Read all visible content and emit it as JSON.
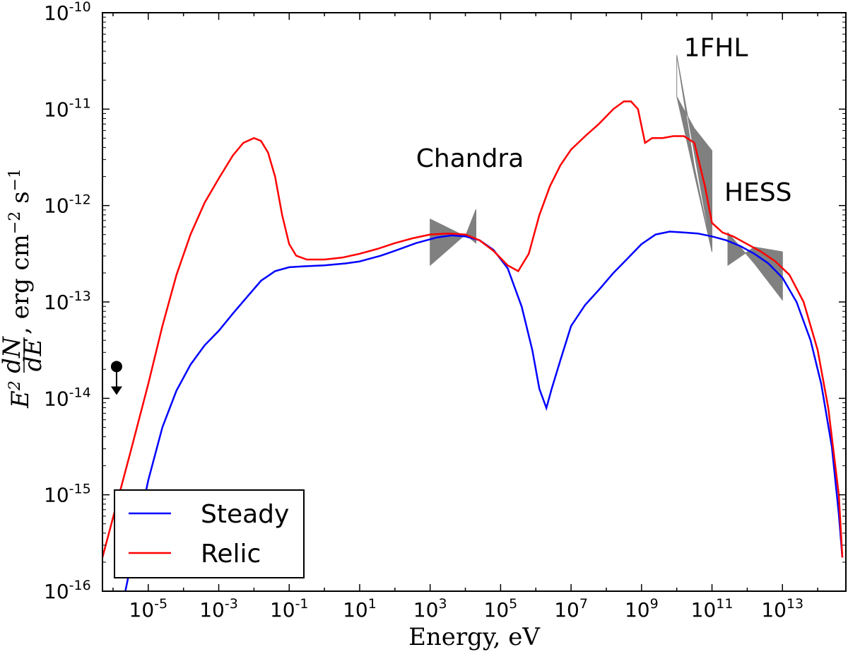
{
  "chart_data": {
    "type": "line",
    "xscale": "log",
    "yscale": "log",
    "xlim_log10": [
      -6.3,
      14.8
    ],
    "ylim_log10": [
      -16,
      -10
    ],
    "xlabel": "Energy, eV",
    "ylabel_parts": {
      "base": "E",
      "sup": "2",
      "num": "dN",
      "den": "dE",
      "unit": ", erg cm",
      "unit_sup1": "−2",
      "unit_mid": " s",
      "unit_sup2": "−1"
    },
    "x_ticks": [
      {
        "exp": -5,
        "base": "10",
        "sup": "-5"
      },
      {
        "exp": -3,
        "base": "10",
        "sup": "-3"
      },
      {
        "exp": -1,
        "base": "10",
        "sup": "-1"
      },
      {
        "exp": 1,
        "base": "10",
        "sup": "1"
      },
      {
        "exp": 3,
        "base": "10",
        "sup": "3"
      },
      {
        "exp": 5,
        "base": "10",
        "sup": "5"
      },
      {
        "exp": 7,
        "base": "10",
        "sup": "7"
      },
      {
        "exp": 9,
        "base": "10",
        "sup": "9"
      },
      {
        "exp": 11,
        "base": "10",
        "sup": "11"
      },
      {
        "exp": 13,
        "base": "10",
        "sup": "13"
      }
    ],
    "y_ticks": [
      {
        "exp": -10,
        "base": "10",
        "sup": "-10"
      },
      {
        "exp": -11,
        "base": "10",
        "sup": "-11"
      },
      {
        "exp": -12,
        "base": "10",
        "sup": "-12"
      },
      {
        "exp": -13,
        "base": "10",
        "sup": "-13"
      },
      {
        "exp": -14,
        "base": "10",
        "sup": "-14"
      },
      {
        "exp": -15,
        "base": "10",
        "sup": "-15"
      },
      {
        "exp": -16,
        "base": "10",
        "sup": "-16"
      }
    ],
    "series": [
      {
        "name": "Steady",
        "color": "#0000ff",
        "points_log10": [
          [
            -5.65,
            -16.0
          ],
          [
            -5.4,
            -15.55
          ],
          [
            -5.0,
            -14.85
          ],
          [
            -4.6,
            -14.3
          ],
          [
            -4.2,
            -13.92
          ],
          [
            -3.8,
            -13.65
          ],
          [
            -3.4,
            -13.45
          ],
          [
            -3.0,
            -13.3
          ],
          [
            -2.6,
            -13.12
          ],
          [
            -2.2,
            -12.95
          ],
          [
            -1.8,
            -12.78
          ],
          [
            -1.4,
            -12.68
          ],
          [
            -1.0,
            -12.64
          ],
          [
            -0.6,
            -12.63
          ],
          [
            0.0,
            -12.62
          ],
          [
            0.6,
            -12.6
          ],
          [
            1.0,
            -12.58
          ],
          [
            1.6,
            -12.52
          ],
          [
            2.0,
            -12.47
          ],
          [
            2.6,
            -12.39
          ],
          [
            3.2,
            -12.33
          ],
          [
            3.6,
            -12.31
          ],
          [
            4.0,
            -12.32
          ],
          [
            4.4,
            -12.36
          ],
          [
            4.8,
            -12.46
          ],
          [
            5.2,
            -12.65
          ],
          [
            5.6,
            -13.05
          ],
          [
            5.9,
            -13.5
          ],
          [
            6.1,
            -13.9
          ],
          [
            6.3,
            -14.1
          ],
          [
            6.45,
            -13.9
          ],
          [
            6.7,
            -13.6
          ],
          [
            7.0,
            -13.25
          ],
          [
            7.4,
            -13.03
          ],
          [
            7.8,
            -12.87
          ],
          [
            8.2,
            -12.7
          ],
          [
            8.6,
            -12.55
          ],
          [
            9.0,
            -12.4
          ],
          [
            9.4,
            -12.3
          ],
          [
            9.8,
            -12.27
          ],
          [
            10.2,
            -12.28
          ],
          [
            10.6,
            -12.29
          ],
          [
            11.0,
            -12.32
          ],
          [
            11.4,
            -12.36
          ],
          [
            11.8,
            -12.42
          ],
          [
            12.2,
            -12.5
          ],
          [
            12.6,
            -12.6
          ],
          [
            13.0,
            -12.75
          ],
          [
            13.4,
            -13.0
          ],
          [
            13.8,
            -13.4
          ],
          [
            14.1,
            -13.85
          ],
          [
            14.4,
            -14.5
          ],
          [
            14.6,
            -15.2
          ],
          [
            14.7,
            -15.65
          ]
        ]
      },
      {
        "name": "Relic",
        "color": "#ff0000",
        "points_log10": [
          [
            -6.3,
            -15.65
          ],
          [
            -5.9,
            -15.1
          ],
          [
            -5.5,
            -14.55
          ],
          [
            -5.0,
            -13.85
          ],
          [
            -4.6,
            -13.25
          ],
          [
            -4.2,
            -12.72
          ],
          [
            -3.8,
            -12.3
          ],
          [
            -3.4,
            -11.97
          ],
          [
            -3.0,
            -11.72
          ],
          [
            -2.6,
            -11.48
          ],
          [
            -2.3,
            -11.35
          ],
          [
            -2.0,
            -11.3
          ],
          [
            -1.8,
            -11.33
          ],
          [
            -1.6,
            -11.45
          ],
          [
            -1.4,
            -11.7
          ],
          [
            -1.2,
            -12.1
          ],
          [
            -1.0,
            -12.4
          ],
          [
            -0.8,
            -12.52
          ],
          [
            -0.5,
            -12.56
          ],
          [
            0.0,
            -12.56
          ],
          [
            0.5,
            -12.54
          ],
          [
            1.0,
            -12.5
          ],
          [
            1.5,
            -12.45
          ],
          [
            2.0,
            -12.39
          ],
          [
            2.5,
            -12.34
          ],
          [
            3.0,
            -12.3
          ],
          [
            3.5,
            -12.29
          ],
          [
            4.0,
            -12.3
          ],
          [
            4.4,
            -12.36
          ],
          [
            4.8,
            -12.47
          ],
          [
            5.2,
            -12.62
          ],
          [
            5.5,
            -12.68
          ],
          [
            5.8,
            -12.5
          ],
          [
            6.1,
            -12.1
          ],
          [
            6.4,
            -11.8
          ],
          [
            6.7,
            -11.58
          ],
          [
            7.0,
            -11.42
          ],
          [
            7.4,
            -11.28
          ],
          [
            7.8,
            -11.15
          ],
          [
            8.2,
            -11.0
          ],
          [
            8.5,
            -10.92
          ],
          [
            8.7,
            -10.92
          ],
          [
            8.9,
            -11.0
          ],
          [
            9.1,
            -11.35
          ],
          [
            9.3,
            -11.3
          ],
          [
            9.6,
            -11.3
          ],
          [
            9.9,
            -11.28
          ],
          [
            10.2,
            -11.28
          ],
          [
            10.5,
            -11.35
          ],
          [
            10.8,
            -11.8
          ],
          [
            11.0,
            -12.18
          ],
          [
            11.3,
            -12.28
          ],
          [
            11.6,
            -12.32
          ],
          [
            12.0,
            -12.4
          ],
          [
            12.4,
            -12.48
          ],
          [
            12.8,
            -12.58
          ],
          [
            13.2,
            -12.72
          ],
          [
            13.6,
            -13.0
          ],
          [
            14.0,
            -13.5
          ],
          [
            14.3,
            -14.1
          ],
          [
            14.6,
            -15.0
          ],
          [
            14.7,
            -15.65
          ]
        ]
      }
    ],
    "bowties": [
      {
        "name": "Chandra",
        "poly_log10": [
          [
            3.0,
            -12.62
          ],
          [
            3.0,
            -12.14
          ],
          [
            4.0,
            -12.32
          ],
          [
            4.3,
            -12.04
          ],
          [
            4.3,
            -12.39
          ],
          [
            4.0,
            -12.3
          ],
          [
            3.0,
            -12.62
          ]
        ]
      },
      {
        "name": "1FHL",
        "poly_log10": [
          [
            10.0,
            -10.44
          ],
          [
            10.0,
            -10.87
          ],
          [
            10.5,
            -11.2
          ],
          [
            11.0,
            -11.43
          ],
          [
            11.0,
            -12.48
          ],
          [
            10.0,
            -10.87
          ],
          [
            10.0,
            -10.44
          ],
          [
            10.5,
            -11.6
          ],
          [
            11.0,
            -12.48
          ]
        ]
      },
      {
        "name": "HESS",
        "poly_log10": [
          [
            11.45,
            -12.28
          ],
          [
            11.45,
            -12.62
          ],
          [
            12.2,
            -12.43
          ],
          [
            13.0,
            -12.48
          ],
          [
            13.0,
            -12.98
          ],
          [
            12.2,
            -12.6
          ],
          [
            11.45,
            -12.28
          ]
        ]
      }
    ],
    "upper_limit": {
      "x_log10": -5.9,
      "y_log10": -13.67,
      "arrow_to_y_log10": -13.95
    },
    "annotations": [
      {
        "text": "Chandra",
        "x_log10": 2.6,
        "y_log10": -11.6
      },
      {
        "text": "1FHL",
        "x_log10": 10.2,
        "y_log10": -10.45
      },
      {
        "text": "HESS",
        "x_log10": 11.35,
        "y_log10": -11.95
      }
    ],
    "legend": {
      "position": "lower-left",
      "entries": [
        {
          "label": "Steady",
          "color": "#0000ff"
        },
        {
          "label": "Relic",
          "color": "#ff0000"
        }
      ]
    }
  }
}
